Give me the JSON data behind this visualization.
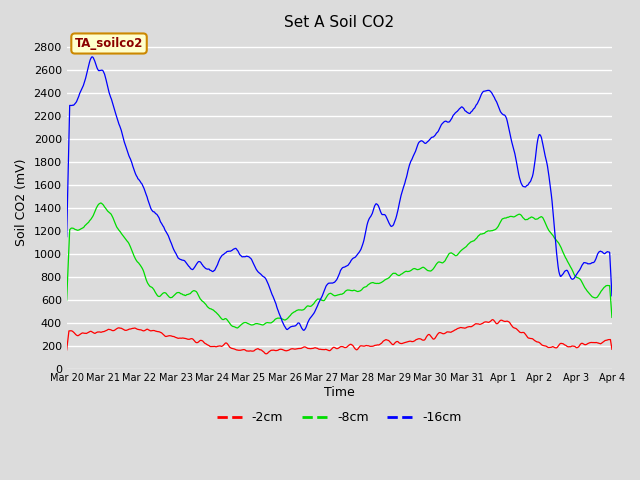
{
  "title": "Set A Soil CO2",
  "ylabel": "Soil CO2 (mV)",
  "xlabel": "Time",
  "annotation": "TA_soilco2",
  "fig_bg": "#dcdcdc",
  "plot_bg": "#dcdcdc",
  "grid_color": "white",
  "series": {
    "2cm": {
      "color": "#ff0000",
      "label": "-2cm"
    },
    "8cm": {
      "color": "#00dd00",
      "label": "-8cm"
    },
    "16cm": {
      "color": "#0000ff",
      "label": "-16cm"
    }
  },
  "ylim": [
    0,
    2900
  ],
  "yticks": [
    0,
    200,
    400,
    600,
    800,
    1000,
    1200,
    1400,
    1600,
    1800,
    2000,
    2200,
    2400,
    2600,
    2800
  ],
  "n_points": 720
}
